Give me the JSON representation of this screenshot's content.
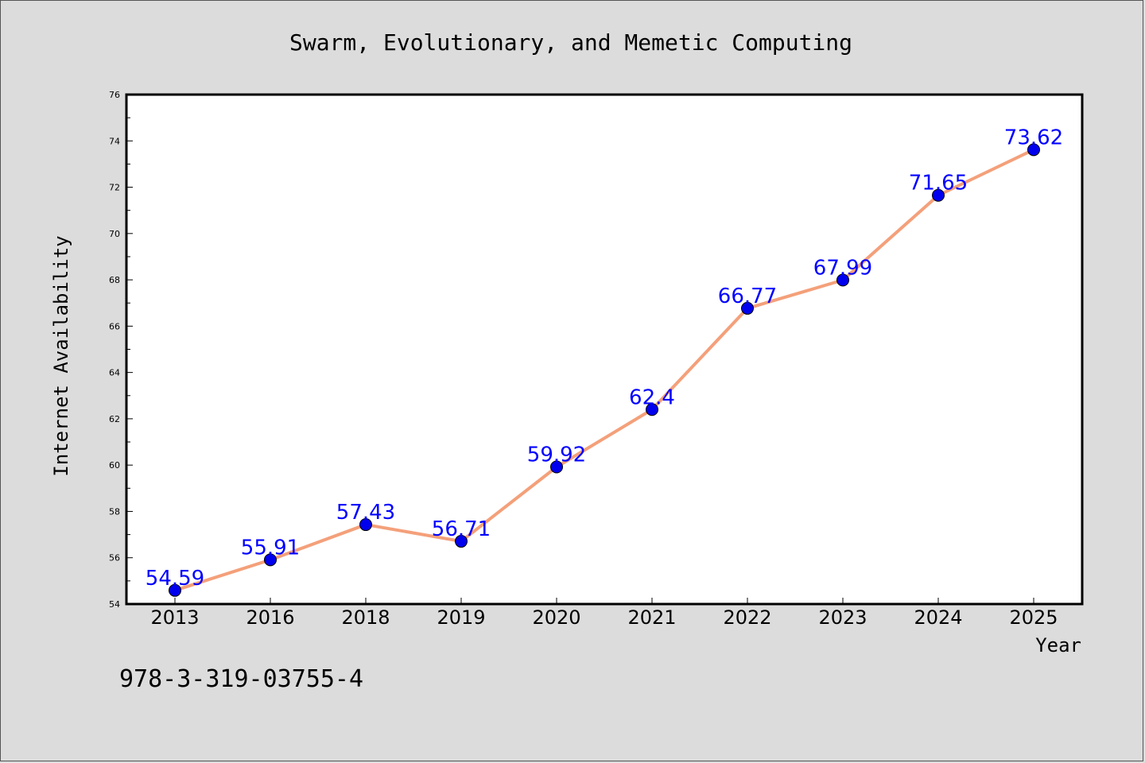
{
  "chart_data": {
    "type": "line",
    "title": "Swarm, Evolutionary, and Memetic Computing",
    "xlabel": "Year",
    "ylabel": "Internet Availability",
    "categories": [
      "2013",
      "2016",
      "2018",
      "2019",
      "2020",
      "2021",
      "2022",
      "2023",
      "2024",
      "2025"
    ],
    "series": [
      {
        "values": [
          54.59,
          55.91,
          57.43,
          56.71,
          59.92,
          62.4,
          66.77,
          67.99,
          71.65,
          73.62
        ],
        "labels": [
          "54.59",
          "55.91",
          "57.43",
          "56.71",
          "59.92",
          "62.4",
          "66.77",
          "67.99",
          "71.65",
          "73.62"
        ],
        "line_color": "#f4a07a",
        "marker_color": "#0000ee"
      }
    ],
    "ylim": [
      54,
      76
    ],
    "yticks": [
      "54",
      "56",
      "58",
      "60",
      "62",
      "64",
      "66",
      "68",
      "70",
      "72",
      "74",
      "76"
    ],
    "grid": false,
    "legend": "none"
  },
  "footer": {
    "isbn": "978-3-319-03755-4"
  },
  "colors": {
    "background": "#dcdcdc",
    "plot_background": "#ffffff",
    "data_label": "#0000ff"
  }
}
